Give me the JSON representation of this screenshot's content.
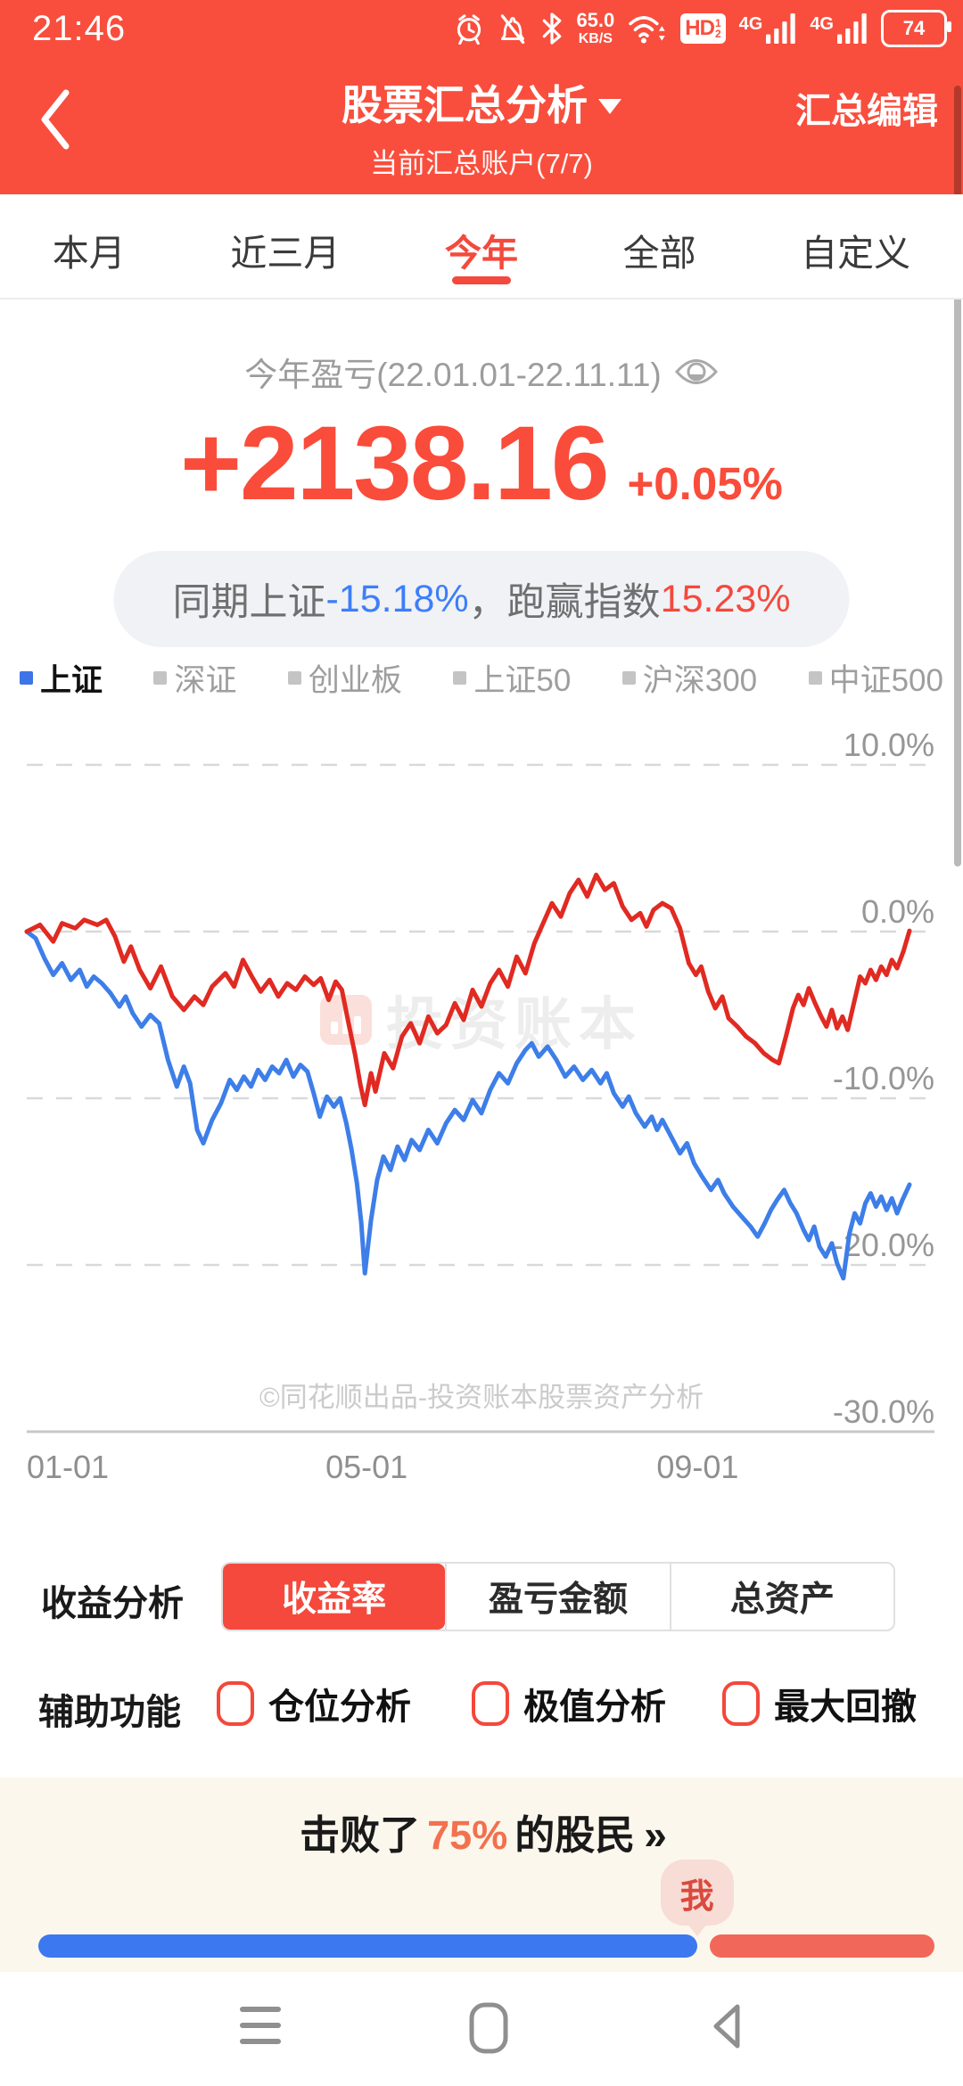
{
  "status_bar": {
    "time": "21:46",
    "speed_value": "65.0",
    "speed_unit": "KB/S",
    "hd": "HD",
    "sim1": "4G",
    "sim2": "4G",
    "battery": "74"
  },
  "header": {
    "title": "股票汇总分析",
    "subtitle": "当前汇总账户(7/7)",
    "edit": "汇总编辑"
  },
  "tabs": [
    "本月",
    "近三月",
    "今年",
    "全部",
    "自定义"
  ],
  "selected_tab": "今年",
  "summary": {
    "period_label": "今年盈亏(22.01.01-22.11.11)",
    "profit": "+2138.16",
    "profit_pct": "+0.05%",
    "compare_prefix": "同期上证 ",
    "compare_index": "-15.18%",
    "compare_mid": "，跑赢指数 ",
    "compare_beat": "15.23%"
  },
  "legend": {
    "items": [
      {
        "label": "上证",
        "color": "#3D74E8",
        "active": true
      },
      {
        "label": "深证",
        "color": "#C4C4C4",
        "active": false
      },
      {
        "label": "创业板",
        "color": "#C4C4C4",
        "active": false
      },
      {
        "label": "上证50",
        "color": "#C4C4C4",
        "active": false
      },
      {
        "label": "沪深300",
        "color": "#C4C4C4",
        "active": false
      },
      {
        "label": "中证500",
        "color": "#C4C4C4",
        "active": false
      }
    ]
  },
  "chart_data": {
    "type": "line",
    "unit": "percent",
    "ylim": [
      -30,
      10
    ],
    "grid": "dashed-horizontal",
    "legend_position": "top",
    "watermark": "投资账本",
    "copyright": "©同花顺出品-投资账本股票资产分析",
    "y_ticks": [
      {
        "label": "10.0%",
        "value": 10
      },
      {
        "label": "0.0%",
        "value": 0
      },
      {
        "label": "-10.0%",
        "value": -10
      },
      {
        "label": "-20.0%",
        "value": -20
      },
      {
        "label": "-30.0%",
        "value": -30
      }
    ],
    "x_ticks": [
      {
        "label": "01-01",
        "pos": 0.0,
        "anchor": "start"
      },
      {
        "label": "05-01",
        "pos": 0.385,
        "anchor": "middle"
      },
      {
        "label": "09-01",
        "pos": 0.76,
        "anchor": "middle"
      }
    ],
    "series": [
      {
        "name": "account-return",
        "color": "#E02A22",
        "final_value": 0.05,
        "points": [
          [
            0,
            0
          ],
          [
            0.015,
            0.4
          ],
          [
            0.03,
            -0.6
          ],
          [
            0.04,
            0.5
          ],
          [
            0.055,
            0.2
          ],
          [
            0.065,
            0.7
          ],
          [
            0.08,
            0.4
          ],
          [
            0.09,
            0.7
          ],
          [
            0.1,
            -0.3
          ],
          [
            0.11,
            -1.8
          ],
          [
            0.118,
            -0.9
          ],
          [
            0.128,
            -2.3
          ],
          [
            0.14,
            -3.4
          ],
          [
            0.152,
            -2.1
          ],
          [
            0.165,
            -3.9
          ],
          [
            0.178,
            -4.7
          ],
          [
            0.19,
            -3.9
          ],
          [
            0.2,
            -4.4
          ],
          [
            0.21,
            -3.3
          ],
          [
            0.225,
            -2.5
          ],
          [
            0.235,
            -3.3
          ],
          [
            0.245,
            -1.7
          ],
          [
            0.255,
            -2.7
          ],
          [
            0.265,
            -3.6
          ],
          [
            0.275,
            -2.9
          ],
          [
            0.285,
            -3.9
          ],
          [
            0.295,
            -3.1
          ],
          [
            0.305,
            -3.5
          ],
          [
            0.315,
            -2.7
          ],
          [
            0.325,
            -3.2
          ],
          [
            0.333,
            -2.8
          ],
          [
            0.342,
            -4.1
          ],
          [
            0.35,
            -3.0
          ],
          [
            0.357,
            -3.5
          ],
          [
            0.365,
            -5.6
          ],
          [
            0.372,
            -7.4
          ],
          [
            0.378,
            -9.2
          ],
          [
            0.383,
            -10.4
          ],
          [
            0.39,
            -8.5
          ],
          [
            0.395,
            -9.6
          ],
          [
            0.405,
            -7.3
          ],
          [
            0.415,
            -8.2
          ],
          [
            0.425,
            -6.3
          ],
          [
            0.435,
            -5.5
          ],
          [
            0.445,
            -6.7
          ],
          [
            0.455,
            -5.1
          ],
          [
            0.465,
            -6.1
          ],
          [
            0.475,
            -5.6
          ],
          [
            0.485,
            -4.3
          ],
          [
            0.495,
            -5.3
          ],
          [
            0.505,
            -3.5
          ],
          [
            0.515,
            -4.5
          ],
          [
            0.525,
            -3.1
          ],
          [
            0.535,
            -2.3
          ],
          [
            0.545,
            -3.3
          ],
          [
            0.555,
            -1.5
          ],
          [
            0.565,
            -2.5
          ],
          [
            0.575,
            -0.7
          ],
          [
            0.585,
            0.5
          ],
          [
            0.595,
            1.7
          ],
          [
            0.605,
            0.9
          ],
          [
            0.615,
            2.3
          ],
          [
            0.625,
            3.1
          ],
          [
            0.635,
            2.1
          ],
          [
            0.645,
            3.4
          ],
          [
            0.655,
            2.5
          ],
          [
            0.665,
            2.9
          ],
          [
            0.675,
            1.5
          ],
          [
            0.685,
            0.7
          ],
          [
            0.695,
            1.1
          ],
          [
            0.702,
            0.3
          ],
          [
            0.71,
            1.3
          ],
          [
            0.72,
            1.7
          ],
          [
            0.73,
            1.4
          ],
          [
            0.74,
            0.2
          ],
          [
            0.75,
            -1.9
          ],
          [
            0.758,
            -2.6
          ],
          [
            0.764,
            -2.1
          ],
          [
            0.772,
            -3.6
          ],
          [
            0.78,
            -4.6
          ],
          [
            0.788,
            -3.9
          ],
          [
            0.795,
            -5.2
          ],
          [
            0.805,
            -5.7
          ],
          [
            0.815,
            -6.3
          ],
          [
            0.825,
            -6.7
          ],
          [
            0.835,
            -7.3
          ],
          [
            0.845,
            -7.7
          ],
          [
            0.852,
            -7.9
          ],
          [
            0.86,
            -6.3
          ],
          [
            0.868,
            -4.6
          ],
          [
            0.874,
            -3.8
          ],
          [
            0.88,
            -4.4
          ],
          [
            0.886,
            -3.4
          ],
          [
            0.893,
            -4.3
          ],
          [
            0.9,
            -5.1
          ],
          [
            0.906,
            -5.7
          ],
          [
            0.912,
            -4.7
          ],
          [
            0.918,
            -5.8
          ],
          [
            0.924,
            -5.1
          ],
          [
            0.93,
            -5.9
          ],
          [
            0.937,
            -4.3
          ],
          [
            0.944,
            -2.7
          ],
          [
            0.95,
            -3.1
          ],
          [
            0.956,
            -2.3
          ],
          [
            0.962,
            -2.9
          ],
          [
            0.968,
            -2.1
          ],
          [
            0.974,
            -2.6
          ],
          [
            0.98,
            -1.7
          ],
          [
            0.986,
            -2.2
          ],
          [
            0.993,
            -1.2
          ],
          [
            1,
            0.05
          ]
        ]
      },
      {
        "name": "上证",
        "color": "#3D7EE8",
        "final_value": -15.18,
        "points": [
          [
            0,
            0
          ],
          [
            0.01,
            -0.4
          ],
          [
            0.02,
            -1.6
          ],
          [
            0.03,
            -2.6
          ],
          [
            0.04,
            -1.9
          ],
          [
            0.05,
            -2.9
          ],
          [
            0.06,
            -2.3
          ],
          [
            0.068,
            -3.3
          ],
          [
            0.076,
            -2.7
          ],
          [
            0.085,
            -3.1
          ],
          [
            0.095,
            -3.7
          ],
          [
            0.105,
            -4.5
          ],
          [
            0.112,
            -3.9
          ],
          [
            0.12,
            -4.9
          ],
          [
            0.13,
            -5.7
          ],
          [
            0.14,
            -5.0
          ],
          [
            0.15,
            -5.5
          ],
          [
            0.16,
            -7.7
          ],
          [
            0.17,
            -9.3
          ],
          [
            0.178,
            -8.1
          ],
          [
            0.185,
            -9.1
          ],
          [
            0.193,
            -11.9
          ],
          [
            0.2,
            -12.7
          ],
          [
            0.21,
            -11.3
          ],
          [
            0.22,
            -10.3
          ],
          [
            0.23,
            -8.9
          ],
          [
            0.238,
            -9.5
          ],
          [
            0.246,
            -8.7
          ],
          [
            0.254,
            -9.3
          ],
          [
            0.262,
            -8.3
          ],
          [
            0.27,
            -8.9
          ],
          [
            0.278,
            -8.1
          ],
          [
            0.286,
            -8.5
          ],
          [
            0.294,
            -7.7
          ],
          [
            0.302,
            -8.7
          ],
          [
            0.31,
            -8.0
          ],
          [
            0.318,
            -8.4
          ],
          [
            0.325,
            -9.7
          ],
          [
            0.332,
            -11.1
          ],
          [
            0.34,
            -9.9
          ],
          [
            0.348,
            -10.5
          ],
          [
            0.355,
            -10.0
          ],
          [
            0.362,
            -11.5
          ],
          [
            0.368,
            -13.1
          ],
          [
            0.374,
            -15.1
          ],
          [
            0.379,
            -17.5
          ],
          [
            0.383,
            -20.5
          ],
          [
            0.39,
            -17.3
          ],
          [
            0.397,
            -14.9
          ],
          [
            0.404,
            -13.5
          ],
          [
            0.412,
            -14.3
          ],
          [
            0.42,
            -12.9
          ],
          [
            0.428,
            -13.7
          ],
          [
            0.436,
            -12.5
          ],
          [
            0.445,
            -13.1
          ],
          [
            0.455,
            -11.9
          ],
          [
            0.465,
            -12.7
          ],
          [
            0.475,
            -11.5
          ],
          [
            0.485,
            -10.7
          ],
          [
            0.495,
            -11.3
          ],
          [
            0.505,
            -10.1
          ],
          [
            0.515,
            -10.9
          ],
          [
            0.525,
            -9.5
          ],
          [
            0.535,
            -8.5
          ],
          [
            0.545,
            -9.1
          ],
          [
            0.555,
            -7.9
          ],
          [
            0.565,
            -7.1
          ],
          [
            0.572,
            -6.7
          ],
          [
            0.58,
            -7.5
          ],
          [
            0.59,
            -6.9
          ],
          [
            0.6,
            -7.7
          ],
          [
            0.61,
            -8.7
          ],
          [
            0.62,
            -8.1
          ],
          [
            0.63,
            -8.9
          ],
          [
            0.64,
            -8.3
          ],
          [
            0.65,
            -9.1
          ],
          [
            0.657,
            -8.5
          ],
          [
            0.665,
            -9.7
          ],
          [
            0.675,
            -10.5
          ],
          [
            0.682,
            -9.9
          ],
          [
            0.69,
            -10.9
          ],
          [
            0.7,
            -11.7
          ],
          [
            0.708,
            -11.1
          ],
          [
            0.714,
            -11.9
          ],
          [
            0.72,
            -11.3
          ],
          [
            0.73,
            -12.3
          ],
          [
            0.74,
            -13.3
          ],
          [
            0.748,
            -12.7
          ],
          [
            0.756,
            -13.9
          ],
          [
            0.765,
            -14.7
          ],
          [
            0.775,
            -15.5
          ],
          [
            0.783,
            -14.9
          ],
          [
            0.79,
            -15.7
          ],
          [
            0.8,
            -16.5
          ],
          [
            0.81,
            -17.1
          ],
          [
            0.82,
            -17.7
          ],
          [
            0.828,
            -18.3
          ],
          [
            0.836,
            -17.5
          ],
          [
            0.843,
            -16.7
          ],
          [
            0.85,
            -16.1
          ],
          [
            0.858,
            -15.5
          ],
          [
            0.865,
            -16.3
          ],
          [
            0.872,
            -16.9
          ],
          [
            0.88,
            -17.9
          ],
          [
            0.886,
            -18.5
          ],
          [
            0.892,
            -17.7
          ],
          [
            0.898,
            -18.9
          ],
          [
            0.905,
            -19.5
          ],
          [
            0.912,
            -18.7
          ],
          [
            0.918,
            -19.9
          ],
          [
            0.925,
            -20.8
          ],
          [
            0.932,
            -18.1
          ],
          [
            0.938,
            -16.9
          ],
          [
            0.944,
            -17.5
          ],
          [
            0.95,
            -16.3
          ],
          [
            0.956,
            -15.7
          ],
          [
            0.962,
            -16.5
          ],
          [
            0.968,
            -15.9
          ],
          [
            0.974,
            -16.7
          ],
          [
            0.98,
            -16.0
          ],
          [
            0.986,
            -16.9
          ],
          [
            0.992,
            -16.1
          ],
          [
            1,
            -15.18
          ]
        ]
      }
    ]
  },
  "controls": {
    "row1_label": "收益分析",
    "segments": [
      "收益率",
      "盈亏金额",
      "总资产"
    ],
    "selected_segment": "收益率",
    "row2_label": "辅助功能",
    "aux": [
      "仓位分析",
      "极值分析",
      "最大回撤"
    ]
  },
  "beat": {
    "text_prefix": "击败了",
    "percent": "75%",
    "text_suffix": "的股民",
    "chevrons": "»",
    "marker_label": "我",
    "blue_ratio": 0.735,
    "blue_color": "#3C78F0",
    "red_color": "#F1685A"
  }
}
